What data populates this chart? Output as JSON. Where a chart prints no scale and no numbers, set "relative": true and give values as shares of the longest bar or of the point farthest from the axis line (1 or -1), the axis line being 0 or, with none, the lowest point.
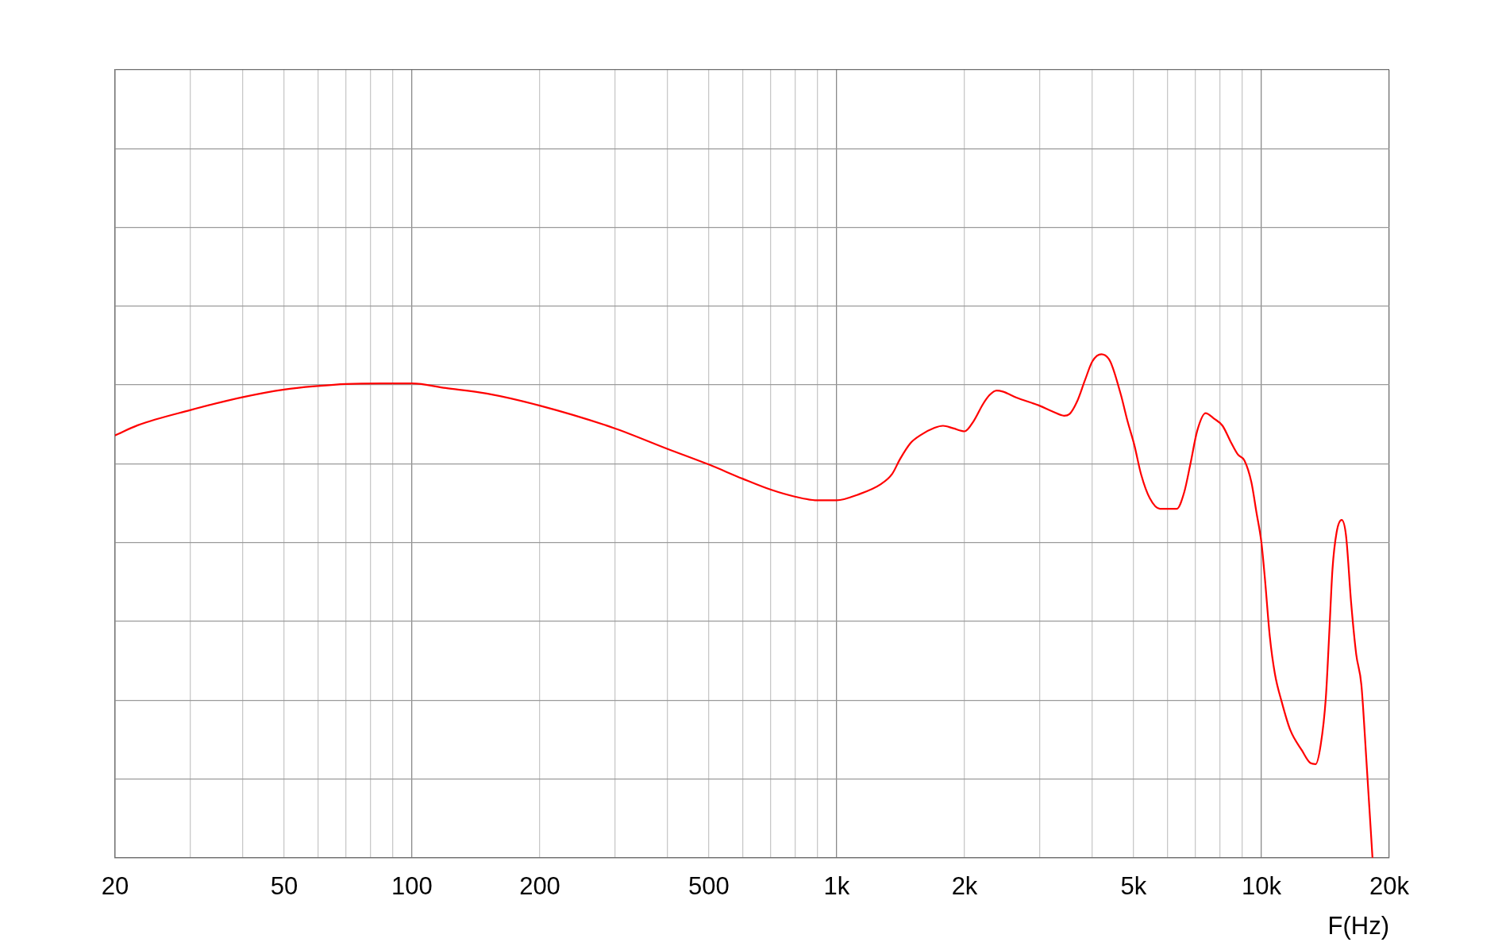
{
  "chart_data": {
    "type": "line",
    "xlabel": "F(Hz)",
    "relative": true,
    "log": "x",
    "grid": true,
    "marker": "none",
    "line_style": "solid",
    "xlim": [
      20,
      20000
    ],
    "xticks": [
      20,
      {
        "value": 30,
        "label": null
      },
      {
        "value": 40,
        "label": null
      },
      50,
      {
        "value": 60,
        "label": null
      },
      {
        "value": 70,
        "label": null
      },
      {
        "value": 80,
        "label": null
      },
      {
        "value": 90,
        "label": null
      },
      100,
      200,
      {
        "value": 300,
        "label": null
      },
      {
        "value": 400,
        "label": null
      },
      500,
      {
        "value": 600,
        "label": null
      },
      {
        "value": 700,
        "label": null
      },
      {
        "value": 800,
        "label": null
      },
      {
        "value": 900,
        "label": null
      },
      {
        "value": 1000,
        "label": "1k"
      },
      {
        "value": 2000,
        "label": "2k"
      },
      {
        "value": 3000,
        "label": null
      },
      {
        "value": 4000,
        "label": null
      },
      {
        "value": 5000,
        "label": "5k"
      },
      {
        "value": 6000,
        "label": null
      },
      {
        "value": 7000,
        "label": null
      },
      {
        "value": 8000,
        "label": null
      },
      {
        "value": 9000,
        "label": null
      },
      {
        "value": 10000,
        "label": "10k"
      },
      {
        "value": 20000,
        "label": "20k"
      }
    ],
    "color": "#ff0000",
    "x": [
      20,
      22.6,
      30,
      40,
      50,
      60,
      70,
      85,
      100,
      120,
      150,
      200,
      300,
      400,
      500,
      600,
      700,
      800,
      900,
      1000,
      1120,
      1270,
      1350,
      1410,
      1490,
      1580,
      1700,
      1780,
      1880,
      2000,
      2100,
      2210,
      2290,
      2380,
      2460,
      2650,
      3000,
      3230,
      3430,
      3530,
      3680,
      3840,
      4000,
      4200,
      4370,
      4460,
      4670,
      4840,
      5020,
      5210,
      5460,
      5770,
      6320,
      6580,
      6800,
      7060,
      7390,
      7740,
      8100,
      8480,
      8800,
      9120,
      9470,
      9730,
      10000,
      10180,
      10470,
      10760,
      11160,
      11690,
      12460,
      13050,
      13420,
      13790,
      14180,
      14430,
      14700,
      15030,
      15450,
      15820,
      16270,
      16720,
      17190,
      17660,
      18260
    ],
    "values": [
      0.839,
      0.859,
      0.889,
      0.915,
      0.93,
      0.937,
      0.941,
      0.942,
      0.942,
      0.933,
      0.922,
      0.898,
      0.853,
      0.812,
      0.781,
      0.753,
      0.731,
      0.717,
      0.71,
      0.71,
      0.721,
      0.742,
      0.762,
      0.792,
      0.823,
      0.84,
      0.854,
      0.858,
      0.853,
      0.847,
      0.867,
      0.901,
      0.919,
      0.928,
      0.926,
      0.914,
      0.898,
      0.886,
      0.878,
      0.881,
      0.906,
      0.948,
      0.986,
      1,
      0.991,
      0.975,
      0.919,
      0.867,
      0.82,
      0.761,
      0.714,
      0.693,
      0.693,
      0.726,
      0.781,
      0.848,
      0.883,
      0.872,
      0.858,
      0.825,
      0.801,
      0.789,
      0.746,
      0.687,
      0.626,
      0.559,
      0.438,
      0.365,
      0.31,
      0.254,
      0.213,
      0.188,
      0.186,
      0.224,
      0.318,
      0.438,
      0.573,
      0.646,
      0.671,
      0.64,
      0.505,
      0.404,
      0.344,
      0.196,
      0
    ]
  }
}
